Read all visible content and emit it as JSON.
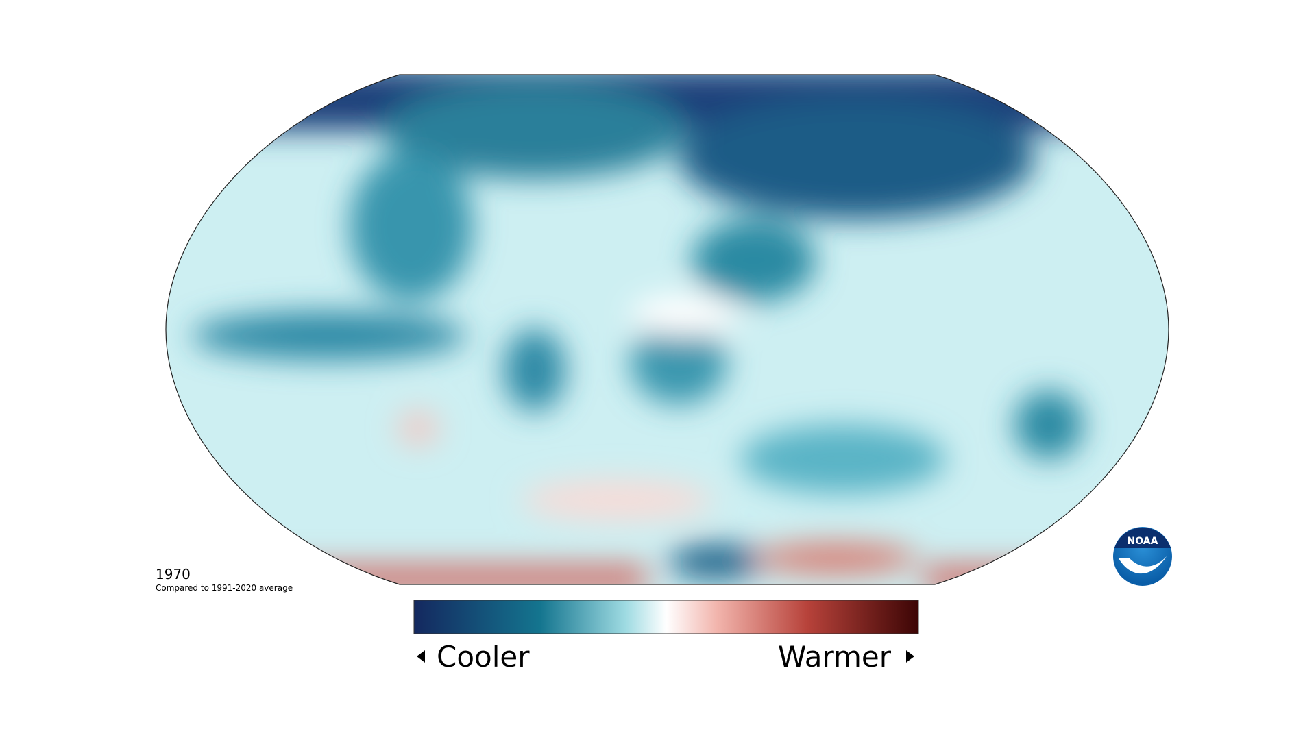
{
  "map": {
    "year": "1970",
    "subtitle": "Compared to 1991-2020 average"
  },
  "legend": {
    "low_label": "Cooler",
    "high_label": "Warmer"
  },
  "logo": {
    "text": "NOAA"
  }
}
